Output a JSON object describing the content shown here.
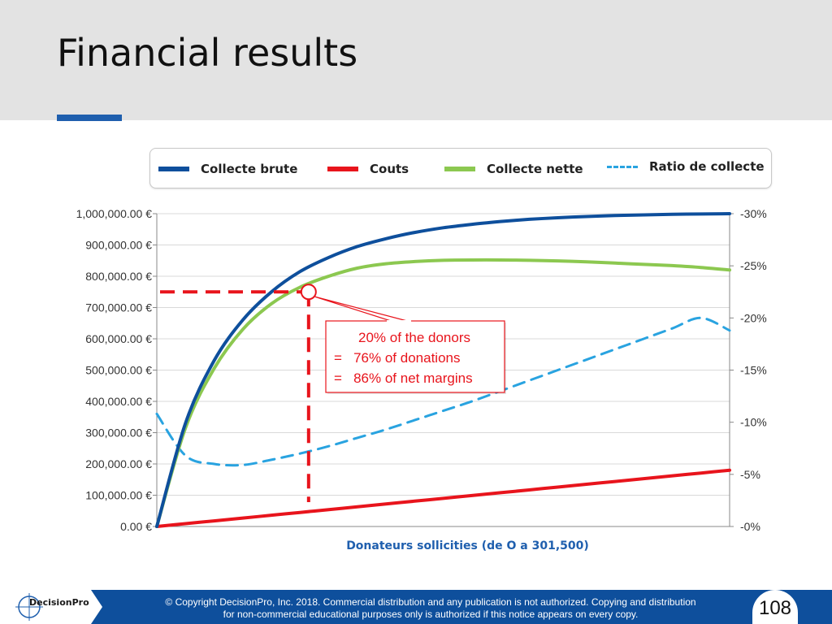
{
  "slide": {
    "title": "Financial results",
    "page_number": "108"
  },
  "footer": {
    "logo_text": "DecisionPro",
    "copyright_line1": "© Copyright DecisionPro, Inc.  2018. Commercial distribution and any publication is not authorized. Copying and distribution",
    "copyright_line2": "for non-commercial educational purposes only is authorized if this notice appears on every copy."
  },
  "legend": [
    {
      "label": "Collecte brute",
      "color": "#0e4f9c",
      "style": "solid"
    },
    {
      "label": "Couts",
      "color": "#e8141c",
      "style": "solid"
    },
    {
      "label": "Collecte nette",
      "color": "#8cc850",
      "style": "solid"
    },
    {
      "label": "Ratio de collecte",
      "color": "#29a3e0",
      "style": "dashed"
    }
  ],
  "chart_data": {
    "type": "line",
    "title": "",
    "xlabel": "Donateurs sollicities (de O a 301,500)",
    "x": [
      0,
      0.05,
      0.1,
      0.15,
      0.2,
      0.25,
      0.3,
      0.35,
      0.4,
      0.45,
      0.5,
      0.55,
      0.6,
      0.65,
      0.7,
      0.75,
      0.8,
      0.85,
      0.9,
      0.95,
      1.0
    ],
    "xlim": [
      0,
      1
    ],
    "y_left": {
      "ylim": [
        0,
        1000000
      ],
      "ticks": [
        "0.00 €",
        "100,000.00 €",
        "200,000.00 €",
        "300,000.00 €",
        "400,000.00 €",
        "500,000.00 €",
        "600,000.00 €",
        "700,000.00 €",
        "800,000.00 €",
        "900,000.00 €",
        "1,000,000.00 €"
      ]
    },
    "y_right": {
      "ylim": [
        0,
        0.3
      ],
      "ticks": [
        "-0%",
        "-5%",
        "-10%",
        "-15%",
        "-20%",
        "-25%",
        "-30%"
      ]
    },
    "grid": true,
    "legend_position": "top",
    "series": [
      {
        "name": "Collecte brute",
        "axis": "left",
        "color": "#0e4f9c",
        "values": [
          0,
          330000,
          530000,
          660000,
          750000,
          815000,
          860000,
          895000,
          920000,
          940000,
          955000,
          966000,
          975000,
          982000,
          987000,
          991000,
          994000,
          996000,
          998000,
          999000,
          1000000
        ]
      },
      {
        "name": "Couts",
        "axis": "left",
        "color": "#e8141c",
        "values": [
          0,
          9000,
          18000,
          27000,
          36000,
          45000,
          54000,
          63000,
          72000,
          81000,
          90000,
          99000,
          108000,
          117000,
          126000,
          135000,
          144000,
          153000,
          162000,
          171000,
          180000
        ]
      },
      {
        "name": "Collecte nette",
        "axis": "left",
        "color": "#8cc850",
        "values": [
          0,
          315000,
          505000,
          630000,
          712000,
          765000,
          800000,
          826000,
          840000,
          847000,
          851000,
          852000,
          852000,
          851000,
          849000,
          846000,
          842000,
          838000,
          834000,
          828000,
          820000
        ]
      },
      {
        "name": "Ratio de collecte",
        "axis": "right",
        "color": "#29a3e0",
        "dashed": true,
        "values": [
          0.108,
          0.068,
          0.06,
          0.059,
          0.064,
          0.07,
          0.077,
          0.085,
          0.093,
          0.102,
          0.111,
          0.12,
          0.13,
          0.14,
          0.15,
          0.16,
          0.17,
          0.18,
          0.19,
          0.2,
          0.188
        ]
      }
    ],
    "annotation": {
      "marker_x": 0.265,
      "marker_y": 750000,
      "lines": [
        "20% of the donors",
        "=   76% of donations",
        "=   86% of net margins"
      ]
    }
  }
}
